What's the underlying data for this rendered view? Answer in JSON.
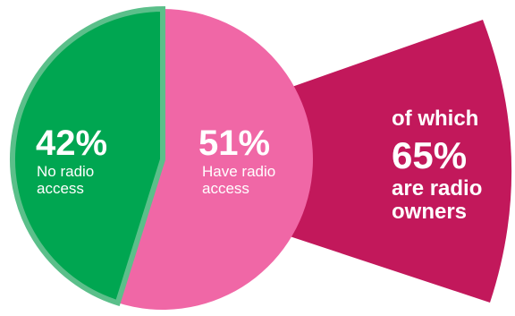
{
  "chart_data": {
    "type": "pie",
    "slices": [
      {
        "label": "No radio access",
        "value": 42,
        "display": "42%",
        "color": "#00a651"
      },
      {
        "label": "Have radio access",
        "value": 51,
        "display": "51%",
        "color": "#f067a6"
      }
    ],
    "breakout": {
      "parent": "Have radio access",
      "prefix": "of which",
      "value": 65,
      "display": "65%",
      "suffix_line1": "are radio",
      "suffix_line2": "owners",
      "color": "#c2185b"
    },
    "outline_color": "#5bbf8a"
  },
  "labels": {
    "no_access": {
      "value": "42%",
      "line1": "No radio",
      "line2": "access"
    },
    "have_access": {
      "value": "51%",
      "line1": "Have radio",
      "line2": "access"
    },
    "breakout": {
      "line1": "of which",
      "value": "65%",
      "line2": "are radio",
      "line3": "owners"
    }
  }
}
